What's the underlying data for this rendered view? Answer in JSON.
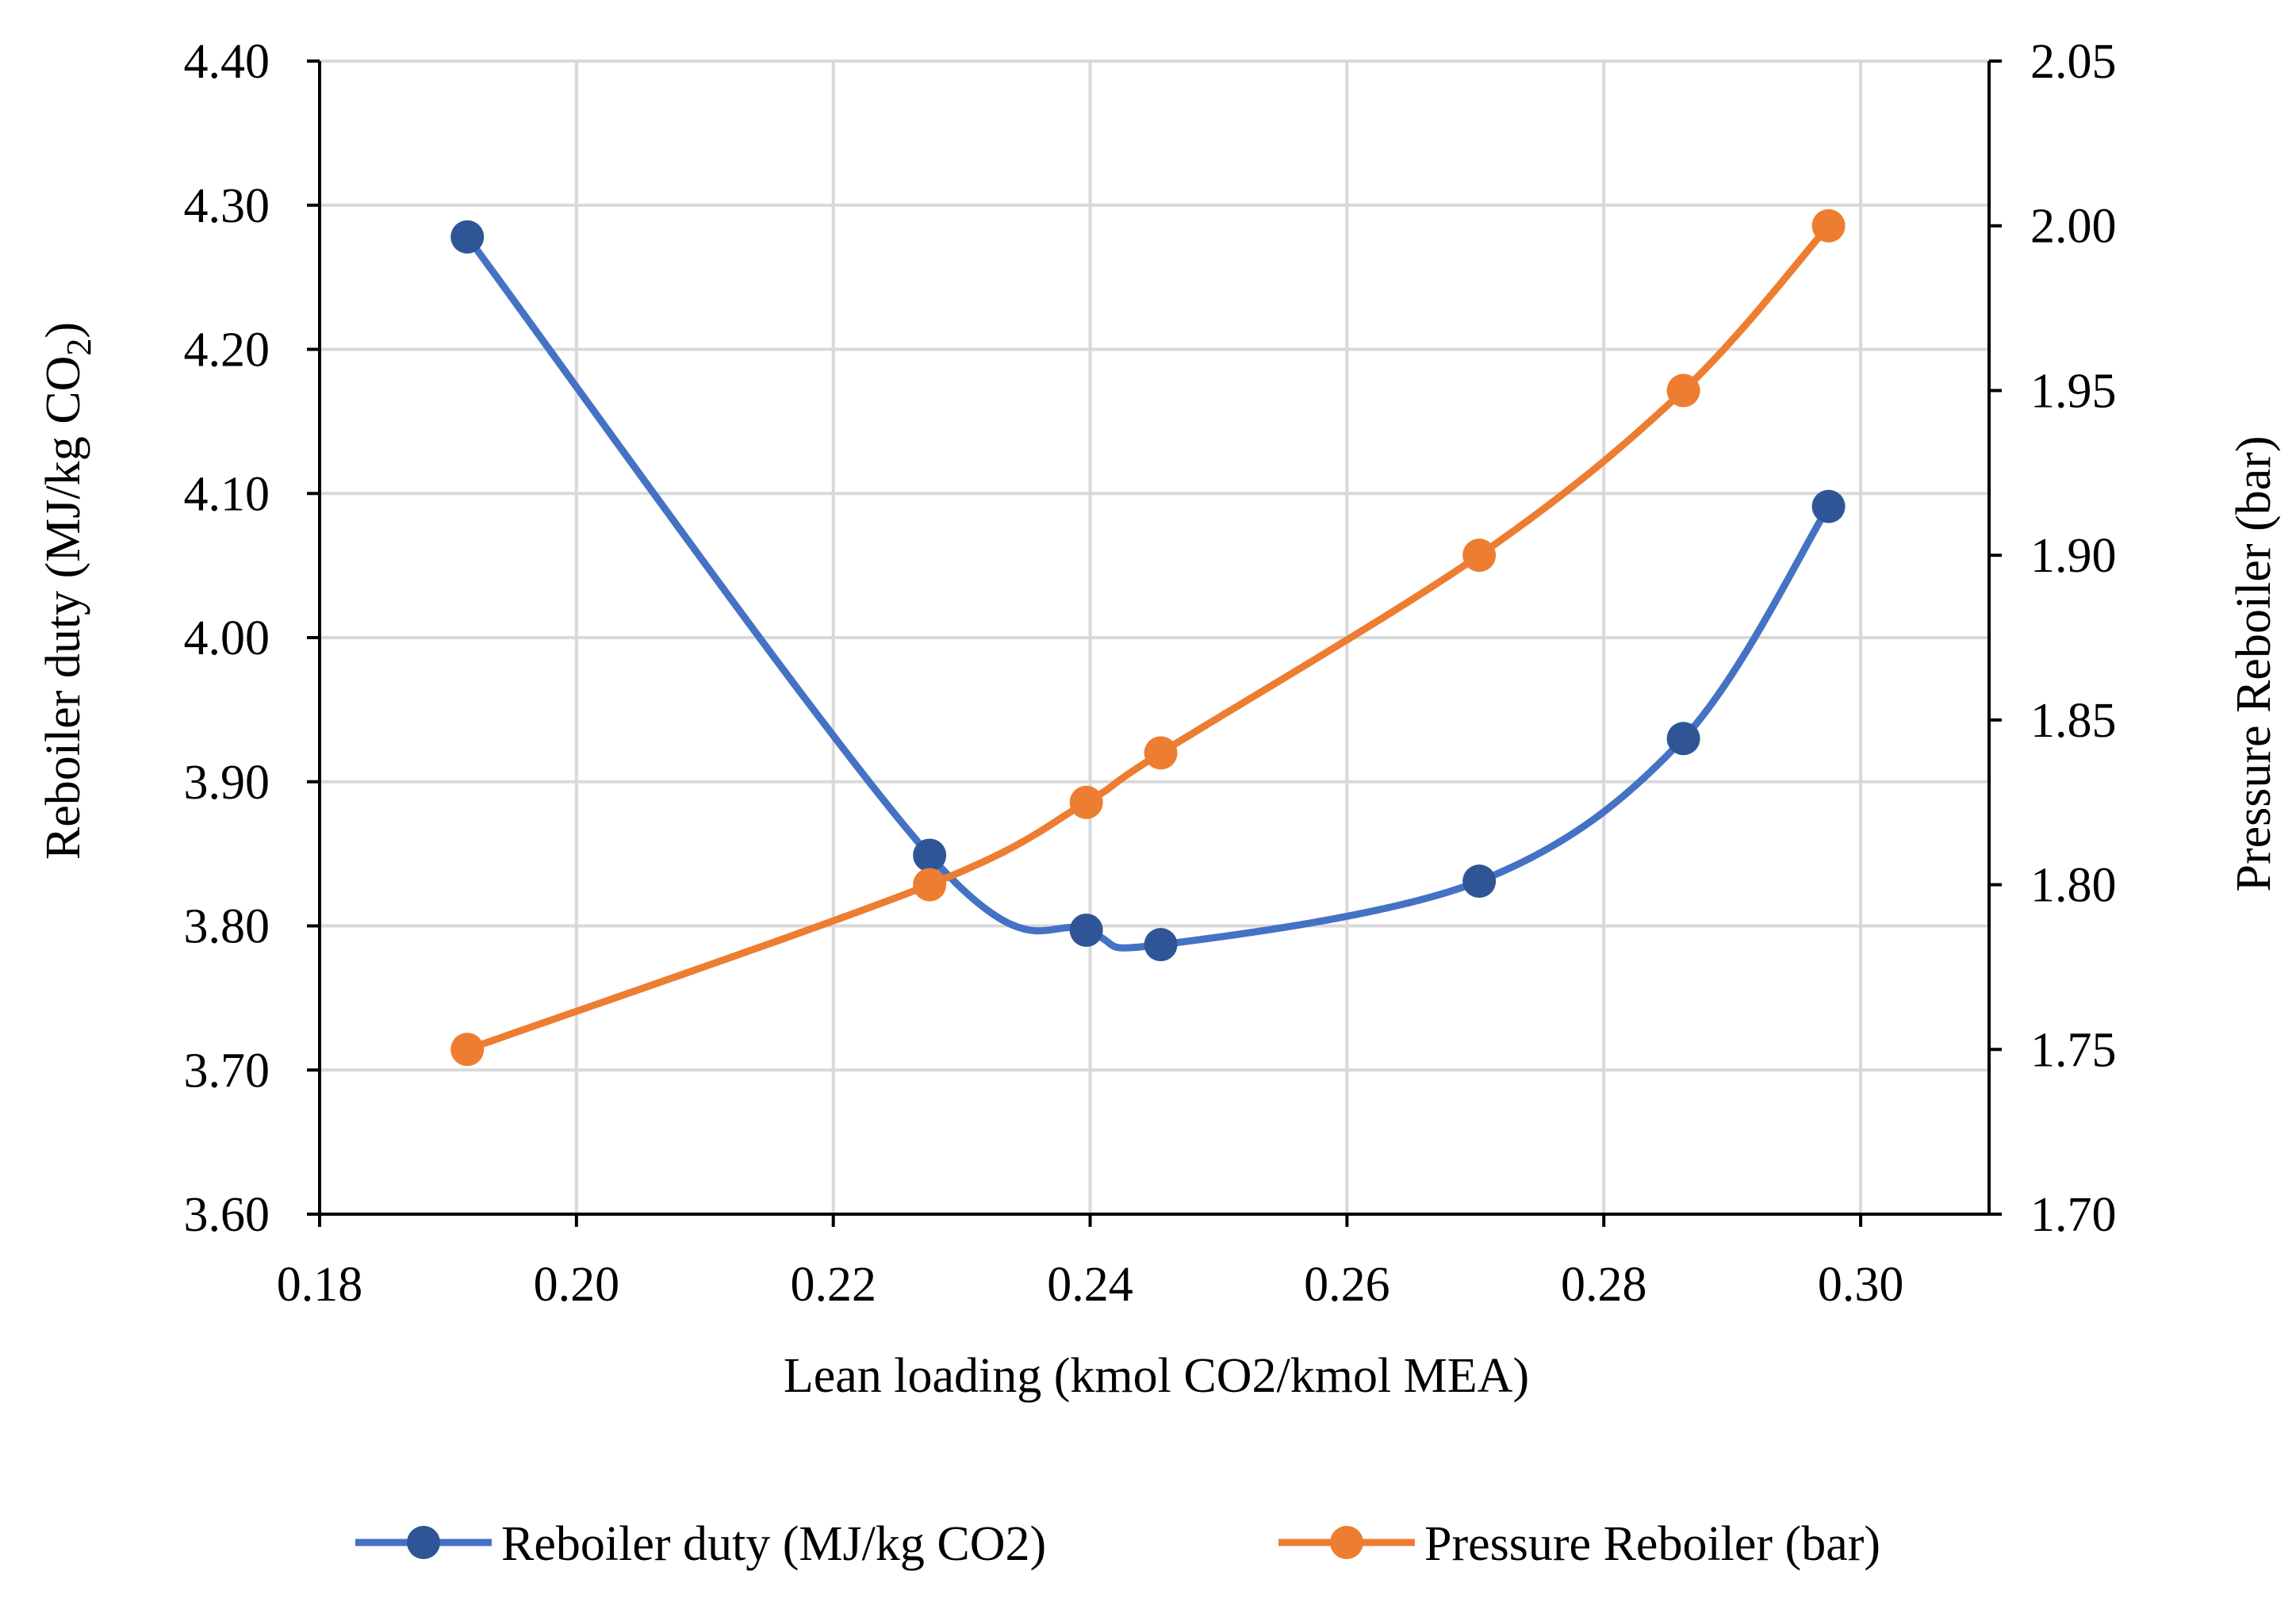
{
  "chart_data": {
    "type": "line",
    "title": "",
    "xlabel": "Lean loading (kmol CO2/kmol MEA)",
    "ylabel": "Reboiler duty (MJ/kg CO",
    "ylabel_sub": "2",
    "ylabel_close": ")",
    "y2label": "Pressure Reboiler (bar)",
    "xlim": [
      0.18,
      0.31
    ],
    "ylim": [
      3.6,
      4.4
    ],
    "y2lim": [
      1.7,
      2.05
    ],
    "xticks": [
      "0.18",
      "0.20",
      "0.22",
      "0.24",
      "0.26",
      "0.28",
      "0.30"
    ],
    "yticks": [
      "3.60",
      "3.70",
      "3.80",
      "3.90",
      "4.00",
      "4.10",
      "4.20",
      "4.30",
      "4.40"
    ],
    "y2ticks": [
      "1.70",
      "1.75",
      "1.80",
      "1.85",
      "1.90",
      "1.95",
      "2.00",
      "2.05"
    ],
    "grid": true,
    "legend_position": "bottom",
    "series": [
      {
        "name": "Reboiler duty (MJ/kg CO2)",
        "axis": "left",
        "color": "#4472C4",
        "marker_color": "#2F5597",
        "x": [
          0.1915,
          0.2275,
          0.2397,
          0.2455,
          0.2703,
          0.2862,
          0.2975
        ],
        "y": [
          4.278,
          3.849,
          3.797,
          3.787,
          3.831,
          3.93,
          4.091
        ]
      },
      {
        "name": "Pressure Reboiler (bar)",
        "axis": "right",
        "color": "#ED7D31",
        "marker_color": "#ED7D31",
        "x": [
          0.1915,
          0.2275,
          0.2397,
          0.2455,
          0.2703,
          0.2862,
          0.2975
        ],
        "y": [
          1.75,
          1.8,
          1.825,
          1.84,
          1.9,
          1.95,
          2.0
        ]
      }
    ]
  }
}
